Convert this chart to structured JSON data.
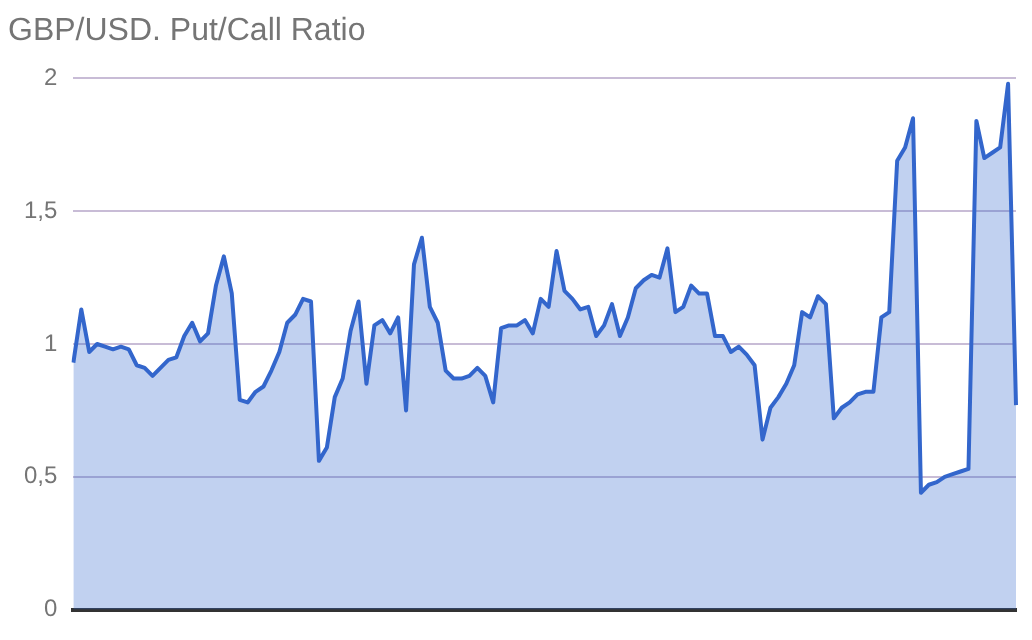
{
  "chart_data": {
    "type": "area",
    "title": "GBP/USD. Put/Call Ratio",
    "categories": [
      null,
      null,
      null,
      null,
      null,
      null,
      null,
      null,
      null,
      null,
      null,
      null,
      null,
      null,
      null,
      null,
      null,
      null,
      null,
      null,
      null,
      null,
      null,
      null,
      null,
      null,
      null,
      null,
      null,
      null,
      null,
      null,
      null,
      null,
      null,
      null,
      null,
      null,
      null,
      null,
      null,
      null,
      null,
      null,
      null,
      null,
      null,
      null,
      null,
      null,
      null,
      null,
      null,
      null,
      null,
      null,
      null,
      null,
      null,
      null,
      null,
      null,
      null,
      null,
      null,
      null,
      null,
      null,
      null,
      null,
      null,
      null,
      null,
      null,
      null,
      null,
      null,
      null,
      null,
      null,
      null,
      null,
      null,
      null,
      null,
      null,
      null,
      null,
      null,
      null,
      null,
      null,
      null,
      null,
      null,
      null,
      null,
      null,
      null,
      null,
      null,
      null,
      null,
      null,
      null,
      null,
      null,
      null,
      null,
      null,
      null,
      null,
      null,
      null,
      null,
      null,
      null,
      null,
      null,
      null
    ],
    "series": [
      {
        "color": "#3366cc",
        "values": [
          0.93,
          1.13,
          0.97,
          1.0,
          0.99,
          0.98,
          0.99,
          0.98,
          0.92,
          0.91,
          0.88,
          0.91,
          0.94,
          0.95,
          1.03,
          1.08,
          1.01,
          1.04,
          1.22,
          1.33,
          1.19,
          0.79,
          0.78,
          0.82,
          0.84,
          0.9,
          0.97,
          1.08,
          1.11,
          1.17,
          1.16,
          0.56,
          0.61,
          0.8,
          0.87,
          1.05,
          1.16,
          0.85,
          1.07,
          1.09,
          1.04,
          1.1,
          0.75,
          1.3,
          1.4,
          1.14,
          1.08,
          0.9,
          0.87,
          0.87,
          0.88,
          0.91,
          0.88,
          0.78,
          1.06,
          1.07,
          1.07,
          1.09,
          1.04,
          1.17,
          1.14,
          1.35,
          1.2,
          1.17,
          1.13,
          1.14,
          1.03,
          1.07,
          1.15,
          1.03,
          1.1,
          1.21,
          1.24,
          1.26,
          1.25,
          1.36,
          1.12,
          1.14,
          1.22,
          1.19,
          1.19,
          1.03,
          1.03,
          0.97,
          0.99,
          0.96,
          0.92,
          0.64,
          0.76,
          0.8,
          0.85,
          0.92,
          1.12,
          1.1,
          1.18,
          1.15,
          0.72,
          0.76,
          0.78,
          0.81,
          0.82,
          0.82,
          1.1,
          1.12,
          1.69,
          1.74,
          1.85,
          0.44,
          0.47,
          0.48,
          0.5,
          0.51,
          0.52,
          0.53,
          1.84,
          1.7,
          1.72,
          1.74,
          1.98,
          0.77
        ]
      }
    ],
    "ylim": [
      0,
      2
    ],
    "yticks": [
      0,
      {
        "value": 0.5,
        "label": "0,5"
      },
      1,
      {
        "value": 1.5,
        "label": "1,5"
      },
      2
    ],
    "grid": "y",
    "tick_labels": "y"
  }
}
